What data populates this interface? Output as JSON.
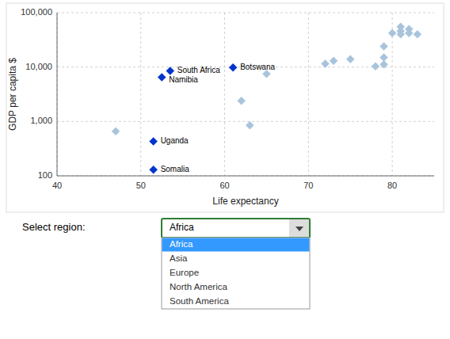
{
  "chart_data": {
    "type": "scatter",
    "xlabel": "Life expectancy",
    "ylabel": "GDP per capita $",
    "log": "y",
    "grid": true,
    "marker": "diamond",
    "xlim": [
      40,
      85
    ],
    "ylim": [
      100,
      100000
    ],
    "xticks": [
      40,
      50,
      60,
      70,
      80
    ],
    "yticks": [
      100,
      {
        "value": 1000,
        "label": "1,000"
      },
      {
        "value": 10000,
        "label": "10,000"
      },
      {
        "value": 100000,
        "label": "100,000"
      }
    ],
    "series": [
      {
        "color": "#A8C4DC",
        "x": [
          47,
          62,
          63,
          65,
          72,
          73,
          75,
          78,
          79,
          79,
          79,
          80,
          81,
          81,
          81,
          82,
          82,
          83
        ],
        "values": [
          660,
          2400,
          850,
          7500,
          11500,
          13000,
          14000,
          10300,
          11200,
          15000,
          24000,
          42000,
          55000,
          46000,
          40000,
          50000,
          42000,
          40000
        ]
      },
      {
        "color": "#0033CC",
        "x": [
          51.5,
          51.5,
          53.5,
          52.5,
          61
        ],
        "values": [
          130,
          430,
          8500,
          6500,
          9800
        ],
        "labels": [
          "Somalia",
          "Uganda",
          "South Africa",
          "Namibia",
          "Botswana"
        ]
      }
    ],
    "select_label": "Select region:",
    "dropdown_options": [
      "Africa",
      "Asia",
      "Europe",
      "North America",
      "South America"
    ],
    "dropdown_selected": "Africa"
  }
}
